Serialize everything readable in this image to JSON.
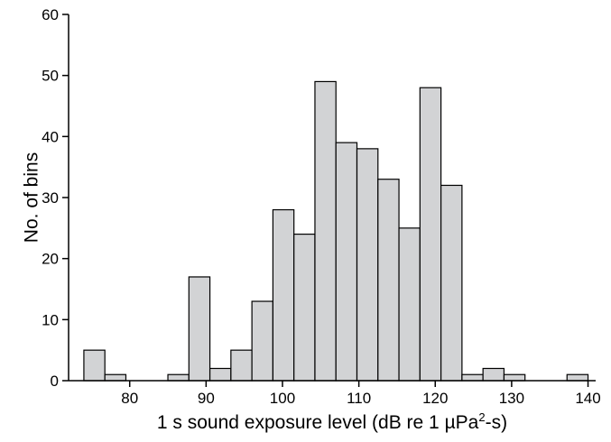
{
  "chart_data": {
    "type": "bar",
    "title": "",
    "xlabel": {
      "before": "1 s sound exposure level (dB re 1 µPa",
      "sup": "2",
      "after": "-s)"
    },
    "ylabel": "No. of bins",
    "xlim": [
      72,
      141
    ],
    "ylim": [
      0,
      60
    ],
    "bin_width": 2.75,
    "xticks": [
      80,
      90,
      100,
      110,
      120,
      130,
      140
    ],
    "yticks": [
      0,
      10,
      20,
      30,
      40,
      50,
      60
    ],
    "bins": [
      {
        "start": 74.0,
        "count": 5
      },
      {
        "start": 76.75,
        "count": 1
      },
      {
        "start": 79.5,
        "count": 0
      },
      {
        "start": 82.25,
        "count": 0
      },
      {
        "start": 85.0,
        "count": 1
      },
      {
        "start": 87.75,
        "count": 17
      },
      {
        "start": 90.5,
        "count": 2
      },
      {
        "start": 93.25,
        "count": 5
      },
      {
        "start": 96.0,
        "count": 13
      },
      {
        "start": 98.75,
        "count": 28
      },
      {
        "start": 101.5,
        "count": 24
      },
      {
        "start": 104.25,
        "count": 49
      },
      {
        "start": 107.0,
        "count": 39
      },
      {
        "start": 109.75,
        "count": 38
      },
      {
        "start": 112.5,
        "count": 33
      },
      {
        "start": 115.25,
        "count": 25
      },
      {
        "start": 118.0,
        "count": 48
      },
      {
        "start": 120.75,
        "count": 32
      },
      {
        "start": 123.5,
        "count": 1
      },
      {
        "start": 126.25,
        "count": 2
      },
      {
        "start": 129.0,
        "count": 1
      },
      {
        "start": 131.75,
        "count": 0
      },
      {
        "start": 134.5,
        "count": 0
      },
      {
        "start": 137.25,
        "count": 1
      }
    ],
    "bar_fill": "#d2d3d5",
    "bar_stroke": "#000000",
    "grid": false,
    "legend": "none"
  }
}
